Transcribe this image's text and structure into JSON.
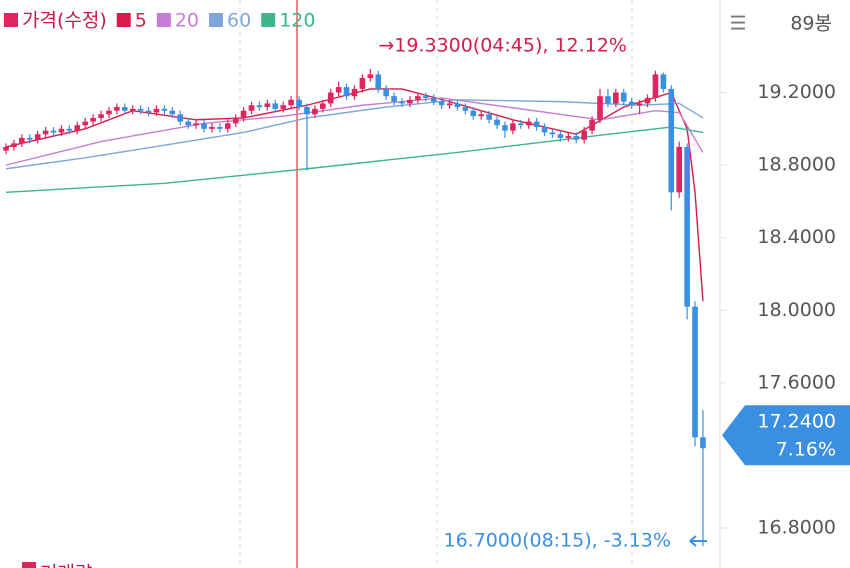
{
  "header": {
    "menu": "☰",
    "bars": "89봉"
  },
  "chart_data": {
    "type": "candlestick",
    "candles": {
      "name": "가격(수정)",
      "color": "#e0245e",
      "down_color": "#3a8fe0",
      "ohlc": [
        [
          18.88,
          18.92,
          18.86,
          18.9
        ],
        [
          18.9,
          18.94,
          18.88,
          18.92
        ],
        [
          18.92,
          18.97,
          18.9,
          18.95
        ],
        [
          18.95,
          18.97,
          18.92,
          18.94
        ],
        [
          18.94,
          18.99,
          18.92,
          18.97
        ],
        [
          18.97,
          19.01,
          18.95,
          18.99
        ],
        [
          18.99,
          19.01,
          18.96,
          18.98
        ],
        [
          18.98,
          19.02,
          18.96,
          19.0
        ],
        [
          19.0,
          19.02,
          18.97,
          18.99
        ],
        [
          18.99,
          19.04,
          18.97,
          19.02
        ],
        [
          19.02,
          19.06,
          19.0,
          19.04
        ],
        [
          19.04,
          19.08,
          19.02,
          19.06
        ],
        [
          19.06,
          19.1,
          19.04,
          19.08
        ],
        [
          19.08,
          19.12,
          19.06,
          19.1
        ],
        [
          19.1,
          19.14,
          19.08,
          19.12
        ],
        [
          19.12,
          19.14,
          19.08,
          19.1
        ],
        [
          19.1,
          19.13,
          19.08,
          19.11
        ],
        [
          19.11,
          19.13,
          19.08,
          19.1
        ],
        [
          19.1,
          19.12,
          19.07,
          19.09
        ],
        [
          19.09,
          19.13,
          19.07,
          19.11
        ],
        [
          19.11,
          19.13,
          19.08,
          19.1
        ],
        [
          19.1,
          19.12,
          19.06,
          19.08
        ],
        [
          19.08,
          19.1,
          19.02,
          19.04
        ],
        [
          19.04,
          19.06,
          19.0,
          19.02
        ],
        [
          19.02,
          19.05,
          19.0,
          19.03
        ],
        [
          19.03,
          19.05,
          18.98,
          19.0
        ],
        [
          19.0,
          19.03,
          18.98,
          19.01
        ],
        [
          19.01,
          19.03,
          18.98,
          19.0
        ],
        [
          19.0,
          19.05,
          18.98,
          19.03
        ],
        [
          19.03,
          19.08,
          19.01,
          19.06
        ],
        [
          19.06,
          19.12,
          19.04,
          19.1
        ],
        [
          19.1,
          19.15,
          19.08,
          19.13
        ],
        [
          19.13,
          19.15,
          19.1,
          19.12
        ],
        [
          19.12,
          19.16,
          19.1,
          19.14
        ],
        [
          19.14,
          19.16,
          19.09,
          19.11
        ],
        [
          19.11,
          19.15,
          19.09,
          19.13
        ],
        [
          19.13,
          19.18,
          19.11,
          19.16
        ],
        [
          19.16,
          19.18,
          19.1,
          19.12
        ],
        [
          19.12,
          19.14,
          18.77,
          19.08
        ],
        [
          19.08,
          19.13,
          19.06,
          19.11
        ],
        [
          19.11,
          19.16,
          19.09,
          19.14
        ],
        [
          19.14,
          19.22,
          19.12,
          19.2
        ],
        [
          19.2,
          19.26,
          19.18,
          19.23
        ],
        [
          19.23,
          19.25,
          19.16,
          19.18
        ],
        [
          19.18,
          19.24,
          19.16,
          19.22
        ],
        [
          19.22,
          19.3,
          19.2,
          19.28
        ],
        [
          19.28,
          19.33,
          19.26,
          19.3
        ],
        [
          19.3,
          19.32,
          19.2,
          19.22
        ],
        [
          19.22,
          19.24,
          19.16,
          19.18
        ],
        [
          19.18,
          19.2,
          19.13,
          19.15
        ],
        [
          19.15,
          19.17,
          19.12,
          19.14
        ],
        [
          19.14,
          19.18,
          19.12,
          19.16
        ],
        [
          19.16,
          19.2,
          19.14,
          19.18
        ],
        [
          19.18,
          19.2,
          19.15,
          19.17
        ],
        [
          19.17,
          19.19,
          19.13,
          19.15
        ],
        [
          19.15,
          19.17,
          19.11,
          19.13
        ],
        [
          19.13,
          19.16,
          19.11,
          19.14
        ],
        [
          19.14,
          19.16,
          19.1,
          19.12
        ],
        [
          19.12,
          19.14,
          19.08,
          19.1
        ],
        [
          19.1,
          19.12,
          19.05,
          19.07
        ],
        [
          19.07,
          19.1,
          19.05,
          19.08
        ],
        [
          19.08,
          19.1,
          19.03,
          19.05
        ],
        [
          19.05,
          19.07,
          19.0,
          19.02
        ],
        [
          19.02,
          19.04,
          18.95,
          18.99
        ],
        [
          18.99,
          19.05,
          18.97,
          19.03
        ],
        [
          19.03,
          19.05,
          19.0,
          19.02
        ],
        [
          19.02,
          19.06,
          19.0,
          19.04
        ],
        [
          19.04,
          19.06,
          18.99,
          19.01
        ],
        [
          19.01,
          19.03,
          18.96,
          18.98
        ],
        [
          18.98,
          19.0,
          18.95,
          18.97
        ],
        [
          18.97,
          18.99,
          18.93,
          18.95
        ],
        [
          18.95,
          18.98,
          18.93,
          18.96
        ],
        [
          18.96,
          18.98,
          18.92,
          18.94
        ],
        [
          18.94,
          19.01,
          18.92,
          18.99
        ],
        [
          18.99,
          19.07,
          18.97,
          19.05
        ],
        [
          19.05,
          19.22,
          19.03,
          19.18
        ],
        [
          19.18,
          19.22,
          19.12,
          19.14
        ],
        [
          19.14,
          19.22,
          19.12,
          19.2
        ],
        [
          19.2,
          19.22,
          19.13,
          19.15
        ],
        [
          19.15,
          19.17,
          19.11,
          19.13
        ],
        [
          19.13,
          19.16,
          19.08,
          19.14
        ],
        [
          19.14,
          19.19,
          19.12,
          19.17
        ],
        [
          19.17,
          19.32,
          19.15,
          19.3
        ],
        [
          19.3,
          19.31,
          19.2,
          19.22
        ],
        [
          19.22,
          19.24,
          18.55,
          18.65
        ],
        [
          18.65,
          18.93,
          18.62,
          18.9
        ],
        [
          18.9,
          18.92,
          17.95,
          18.02
        ],
        [
          18.02,
          18.05,
          17.25,
          17.3
        ],
        [
          17.3,
          17.45,
          16.7,
          17.24
        ]
      ]
    },
    "series": [
      {
        "name": "5",
        "color": "#d81b4a",
        "x": [
          0,
          10,
          16,
          24,
          30,
          38,
          46,
          50,
          56,
          64,
          72,
          78,
          84,
          85,
          86,
          87,
          88
        ],
        "values": [
          18.9,
          19.0,
          19.1,
          19.05,
          19.06,
          19.13,
          19.22,
          19.22,
          19.15,
          19.05,
          18.97,
          19.12,
          19.2,
          19.1,
          19.0,
          18.65,
          18.05
        ]
      },
      {
        "name": "20",
        "color": "#c77dd6",
        "x": [
          0,
          12,
          25,
          35,
          45,
          55,
          65,
          75,
          82,
          85,
          88
        ],
        "values": [
          18.8,
          18.93,
          19.03,
          19.07,
          19.13,
          19.17,
          19.11,
          19.05,
          19.1,
          19.09,
          18.87
        ]
      },
      {
        "name": "60",
        "color": "#7ea6d8",
        "x": [
          0,
          10,
          20,
          30,
          38,
          48,
          57,
          70,
          80,
          85,
          88
        ],
        "values": [
          18.78,
          18.84,
          18.91,
          18.98,
          19.06,
          19.12,
          19.16,
          19.15,
          19.13,
          19.14,
          19.06
        ]
      },
      {
        "name": "120",
        "color": "#3fb58a",
        "x": [
          0,
          20,
          38,
          57,
          76,
          84,
          88
        ],
        "values": [
          18.65,
          18.7,
          18.78,
          18.87,
          18.97,
          19.01,
          18.98
        ]
      }
    ],
    "ylim": [
      16.69,
      19.71
    ],
    "yticks": [
      {
        "value": 19.2,
        "label": "19.2000"
      },
      {
        "value": 18.8,
        "label": "18.8000"
      },
      {
        "value": 18.4,
        "label": "18.4000"
      },
      {
        "value": 18.0,
        "label": "18.0000"
      },
      {
        "value": 17.6,
        "label": "17.6000"
      },
      {
        "value": 16.8,
        "label": "16.8000"
      }
    ],
    "high_label": "→19.3300(04:45), 12.12%",
    "low_label": "16.7000(08:15), -3.13%",
    "last_label": "17.2400",
    "last_change": "7.16%",
    "volume_label": "거래량"
  }
}
